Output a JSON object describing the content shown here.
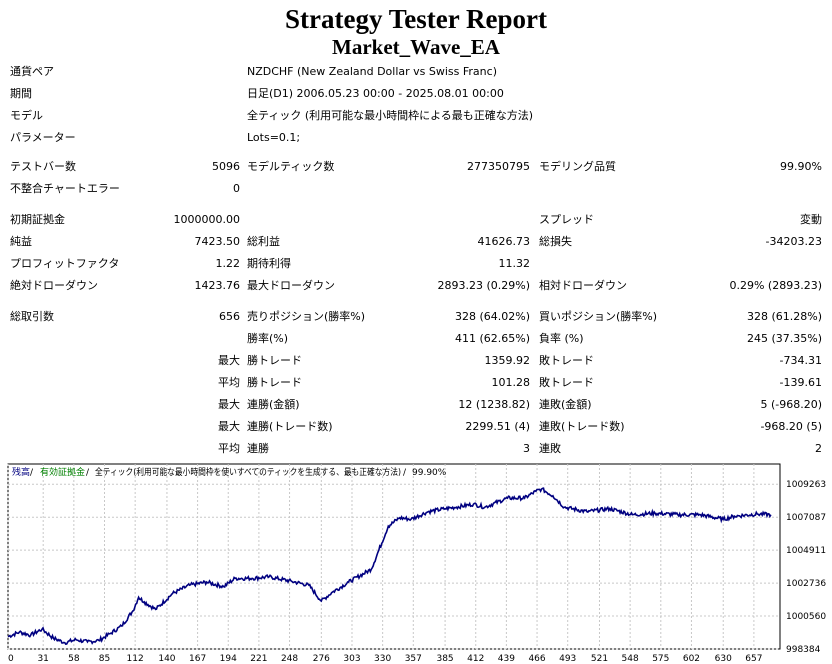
{
  "header": {
    "title": "Strategy Tester Report",
    "subtitle": "Market_Wave_EA"
  },
  "info": {
    "pair_label": "通貨ペア",
    "pair_value": "NZDCHF (New Zealand Dollar vs Swiss Franc)",
    "period_label": "期間",
    "period_value": "日足(D1) 2006.05.23 00:00 - 2025.08.01 00:00",
    "model_label": "モデル",
    "model_value": "全ティック (利用可能な最小時間枠による最も正確な方法)",
    "params_label": "パラメーター",
    "params_value": "Lots=0.1;"
  },
  "stats": {
    "test_bars_label": "テストバー数",
    "test_bars_value": "5096",
    "model_ticks_label": "モデルティック数",
    "model_ticks_value": "277350795",
    "modeling_quality_label": "モデリング品質",
    "modeling_quality_value": "99.90%",
    "mismatch_label": "不整合チャートエラー",
    "mismatch_value": "0",
    "initial_deposit_label": "初期証拠金",
    "initial_deposit_value": "1000000.00",
    "spread_label": "スプレッド",
    "spread_value": "変動",
    "net_profit_label": "純益",
    "net_profit_value": "7423.50",
    "gross_profit_label": "総利益",
    "gross_profit_value": "41626.73",
    "gross_loss_label": "総損失",
    "gross_loss_value": "-34203.23",
    "profit_factor_label": "プロフィットファクタ",
    "profit_factor_value": "1.22",
    "expected_payoff_label": "期待利得",
    "expected_payoff_value": "11.32",
    "abs_dd_label": "絶対ドローダウン",
    "abs_dd_value": "1423.76",
    "max_dd_label": "最大ドローダウン",
    "max_dd_value": "2893.23 (0.29%)",
    "rel_dd_label": "相対ドローダウン",
    "rel_dd_value": "0.29% (2893.23)",
    "total_trades_label": "総取引数",
    "total_trades_value": "656",
    "short_label": "売りポジション(勝率%)",
    "short_value": "328 (64.02%)",
    "long_label": "買いポジション(勝率%)",
    "long_value": "328 (61.28%)",
    "win_rate_label": "勝率(%)",
    "win_rate_value": "411 (62.65%)",
    "loss_rate_label": "負率 (%)",
    "loss_rate_value": "245 (37.35%)",
    "max_label_1": "最大",
    "largest_win_label": "勝トレード",
    "largest_win_value": "1359.92",
    "largest_loss_label": "敗トレード",
    "largest_loss_value": "-734.31",
    "avg_label_1": "平均",
    "avg_win_label": "勝トレード",
    "avg_win_value": "101.28",
    "avg_loss_label": "敗トレード",
    "avg_loss_value": "-139.61",
    "max_label_2": "最大",
    "max_consec_wins_money_label": "連勝(金額)",
    "max_consec_wins_money_value": "12 (1238.82)",
    "max_consec_losses_money_label": "連敗(金額)",
    "max_consec_losses_money_value": "5 (-968.20)",
    "max_label_3": "最大",
    "max_consec_wins_count_label": "連勝(トレード数)",
    "max_consec_wins_count_value": "2299.51 (4)",
    "max_consec_losses_count_label": "連敗(トレード数)",
    "max_consec_losses_count_value": "-968.20 (5)",
    "avg_label_2": "平均",
    "avg_consec_wins_label": "連勝",
    "avg_consec_wins_value": "3",
    "avg_consec_losses_label": "連敗",
    "avg_consec_losses_value": "2"
  },
  "chart_legend": {
    "balance": "残高",
    "sep1": " / ",
    "equity": "有効証拠金",
    "sep2": " / ",
    "model": "全ティック(利用可能な最小時間枠を使いすべてのティックを生成する、最も正確な方法)",
    "sep3": " / ",
    "quality": "99.90%"
  },
  "chart_data": {
    "type": "line",
    "title": "",
    "xlabel": "",
    "ylabel": "",
    "x_ticks": [
      0,
      31,
      58,
      85,
      112,
      140,
      167,
      194,
      221,
      248,
      276,
      303,
      330,
      357,
      385,
      412,
      439,
      466,
      493,
      521,
      548,
      575,
      602,
      630,
      657
    ],
    "y_ticks": [
      "1009263",
      "1007087",
      "1004911",
      "1002736",
      "1000560",
      "998384"
    ],
    "xlim": [
      0,
      680
    ],
    "ylim": [
      998384,
      1010600
    ],
    "grid": true,
    "series": [
      {
        "color": "#000080",
        "x": [
          0,
          10,
          20,
          30,
          40,
          50,
          60,
          70,
          80,
          90,
          100,
          110,
          115,
          120,
          130,
          145,
          160,
          175,
          190,
          200,
          215,
          230,
          250,
          265,
          276,
          285,
          300,
          320,
          335,
          345,
          355,
          370,
          385,
          395,
          410,
          420,
          440,
          455,
          465,
          470,
          480,
          490,
          510,
          530,
          550,
          570,
          590,
          610,
          630,
          640,
          660,
          672
        ],
        "y": [
          999200,
          999500,
          999300,
          999700,
          999100,
          998800,
          999000,
          998850,
          998950,
          999400,
          999900,
          1000900,
          1001800,
          1001500,
          1001000,
          1002050,
          1002600,
          1002800,
          1002500,
          1003050,
          1003050,
          1003150,
          1002850,
          1002600,
          1001550,
          1002100,
          1002800,
          1003650,
          1006500,
          1007050,
          1006950,
          1007450,
          1007650,
          1007750,
          1007950,
          1007750,
          1008350,
          1008350,
          1008800,
          1008950,
          1008500,
          1007750,
          1007450,
          1007650,
          1007250,
          1007350,
          1007250,
          1007250,
          1006950,
          1007150,
          1007300,
          1007250
        ]
      }
    ]
  }
}
